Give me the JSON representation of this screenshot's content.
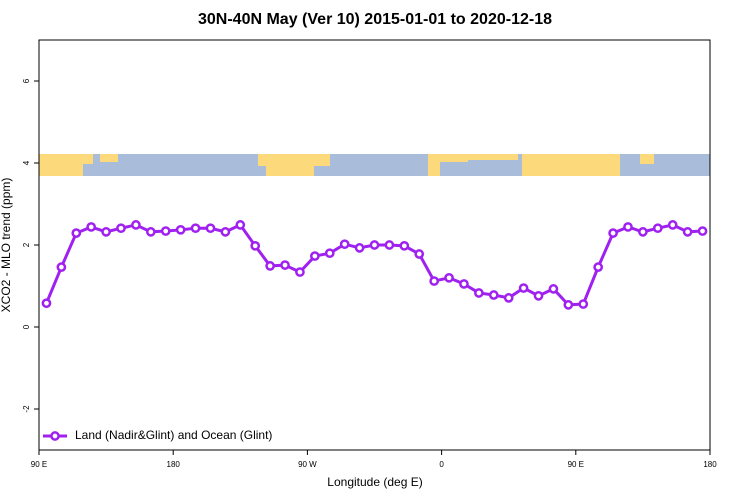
{
  "chart_data": {
    "type": "line",
    "title": "30N-40N May (Ver 10)   2015-01-01 to 2020-12-18",
    "xlabel": "Longitude (deg E)",
    "ylabel": "XCO2 - MLO trend (ppm)",
    "x": [
      95,
      105,
      115,
      125,
      135,
      145,
      155,
      165,
      175,
      185,
      195,
      205,
      215,
      225,
      235,
      245,
      255,
      265,
      275,
      285,
      295,
      305,
      315,
      325,
      335,
      345,
      355,
      365,
      375,
      385,
      395,
      405,
      415,
      425,
      435,
      445,
      455,
      465,
      475,
      485,
      495,
      505,
      515,
      525,
      535
    ],
    "series": [
      {
        "name": "Land (Nadir&Glint) and Ocean (Glint)",
        "color": "#a020f0",
        "values": [
          0.58,
          1.46,
          2.29,
          2.44,
          2.32,
          2.41,
          2.49,
          2.32,
          2.34,
          2.37,
          2.41,
          2.41,
          2.32,
          2.49,
          1.98,
          1.49,
          1.51,
          1.34,
          1.73,
          1.8,
          2.02,
          1.93,
          2.0,
          2.0,
          1.98,
          1.78,
          1.12,
          1.2,
          1.05,
          0.83,
          0.78,
          0.71,
          0.95,
          0.76,
          0.93,
          0.54,
          0.56,
          1.46,
          2.29,
          2.44,
          2.32,
          2.41,
          2.49,
          2.32,
          2.34
        ]
      }
    ],
    "xlim": [
      90,
      540
    ],
    "xticks": [
      {
        "value": 90,
        "label": "90 E"
      },
      {
        "value": 180,
        "label": "180"
      },
      {
        "value": 270,
        "label": "90 W"
      },
      {
        "value": 360,
        "label": "0"
      },
      {
        "value": 450,
        "label": "90 E"
      },
      {
        "value": 540,
        "label": "180"
      }
    ],
    "ylim": [
      -3,
      7
    ],
    "yticks": [
      -2,
      0,
      2,
      4,
      6
    ],
    "legend": "bottomleft"
  }
}
